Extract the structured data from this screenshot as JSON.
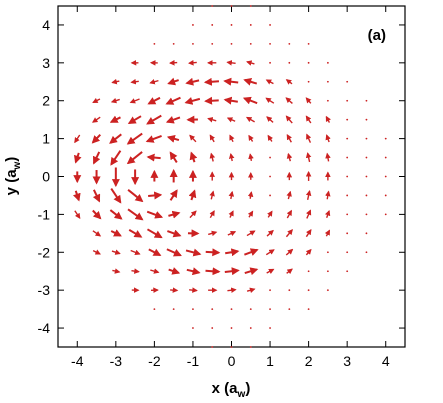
{
  "chart_data": {
    "type": "vector-field",
    "panel_label": "(a)",
    "xlabel": "x (a",
    "xlabel_sub": "w",
    "xlabel_tail": ")",
    "ylabel": "y (a",
    "ylabel_sub": "w",
    "ylabel_tail": ")",
    "xlim": [
      -4.5,
      4.5
    ],
    "ylim": [
      -4.5,
      4.5
    ],
    "xticks": [
      -4,
      -3,
      -2,
      -1,
      0,
      1,
      2,
      3,
      4
    ],
    "yticks": [
      -4,
      -3,
      -2,
      -1,
      0,
      1,
      2,
      3,
      4
    ],
    "xtick_labels": [
      "-4",
      "-3",
      "-2",
      "-1",
      "0",
      "1",
      "2",
      "3",
      "4"
    ],
    "ytick_labels": [
      "-4",
      "-3",
      "-2",
      "-1",
      "0",
      "1",
      "2",
      "3",
      "4"
    ],
    "grid": false,
    "grid_spacing": 0.5,
    "domain_radius": 3.6,
    "arrow_color": "#cc2222",
    "vortex": {
      "x": -2.5,
      "y": 0,
      "circulation": "counter-clockwise"
    },
    "ring": {
      "x": -0.2,
      "y": 0,
      "radius": 2.3
    },
    "field_description": "arrows showing a vortex centred near x=-2.5, y=0 with a circulating flow ring around the left half of the domain"
  }
}
